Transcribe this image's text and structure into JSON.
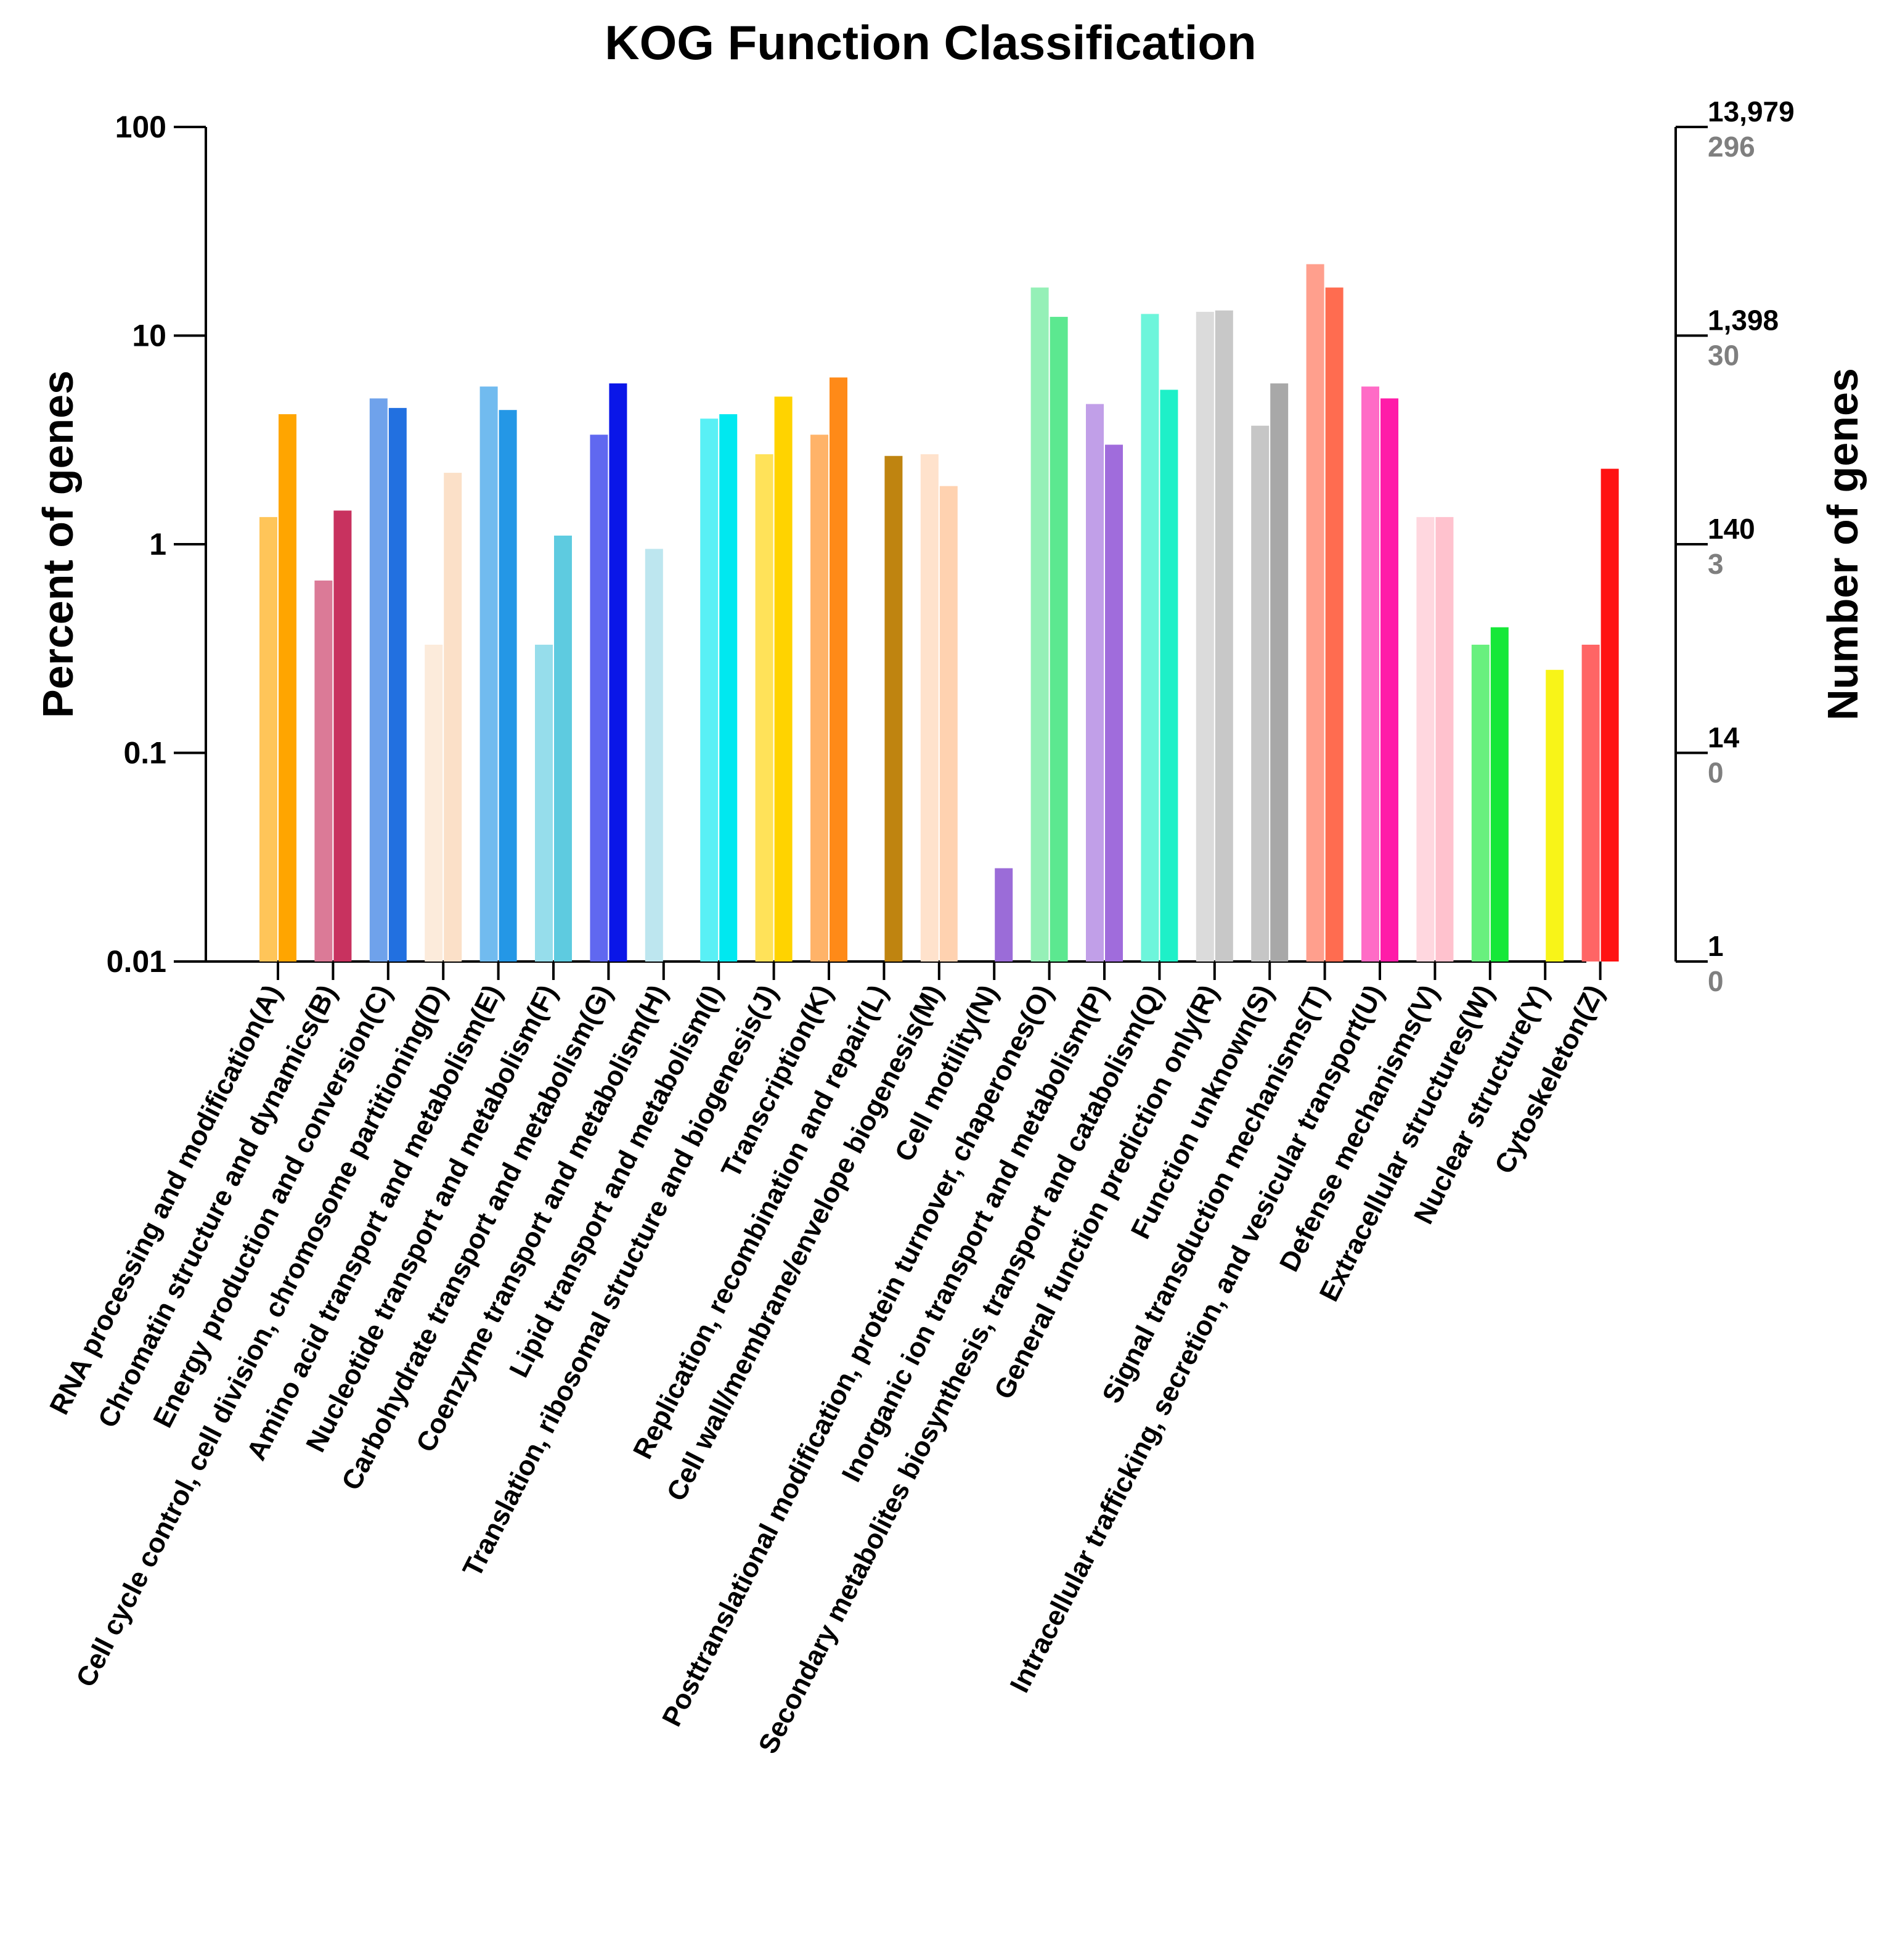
{
  "chart_data": {
    "type": "bar",
    "title": "KOG Function Classification",
    "ylabel": "Percent of genes",
    "ylabel_right": "Number of genes",
    "yscale": "log",
    "ylim": [
      0.01,
      100
    ],
    "y_ticks": [
      "0.01",
      "0.1",
      "1",
      "10",
      "100"
    ],
    "right_ticks_primary": [
      "1",
      "14",
      "140",
      "1,398",
      "13,979"
    ],
    "right_ticks_secondary": [
      "0",
      "0",
      "3",
      "30",
      "296"
    ],
    "categories": [
      "RNA processing and modification(A)",
      "Chromatin structure and dynamics(B)",
      "Energy production and conversion(C)",
      "Cell cycle control, cell division, chromosome partitioning(D)",
      "Amino acid transport and metabolism(E)",
      "Nucleotide transport and metabolism(F)",
      "Carbohydrate transport and metabolism(G)",
      "Coenzyme transport and metabolism(H)",
      "Lipid transport and metabolism(I)",
      "Translation, ribosomal structure and biogenesis(J)",
      "Transcription(K)",
      "Replication, recombination and repair(L)",
      "Cell wall/membrane/envelope biogenesis(M)",
      "Cell motility(N)",
      "Posttranslational modification, protein turnover, chaperones(O)",
      "Inorganic ion transport and metabolism(P)",
      "Secondary metabolites biosynthesis, transport and catabolism(Q)",
      "General function prediction only(R)",
      "Function unknown(S)",
      "Signal transduction mechanisms(T)",
      "Intracellular trafficking, secretion, and vesicular transport(U)",
      "Defense mechanisms(V)",
      "Extracellular structures(W)",
      "Nuclear structure(Y)",
      "Cytoskeleton(Z)"
    ],
    "colors": [
      "#FFA500",
      "#C8325F",
      "#2270E0",
      "#FBE0C8",
      "#2497E6",
      "#5ECBE0",
      "#0A16E8",
      "#9AD8E6",
      "#00E8F0",
      "#FFD300",
      "#FF8A18",
      "#BF8410",
      "#FFD2B0",
      "#9B6CD8",
      "#5CE890",
      "#A06CDC",
      "#1EF0C8",
      "#C8C8C8",
      "#A8A8A8",
      "#FF6C50",
      "#FF1CA8",
      "#FFC2CE",
      "#16E838",
      "#F8F418",
      "#FF1212"
    ],
    "series": [
      {
        "name": "Number of genes (primary, light bars)",
        "values": [
          1.35,
          0.67,
          5.0,
          0.33,
          5.7,
          0.33,
          3.35,
          0.95,
          4.0,
          2.7,
          3.35,
          null,
          2.7,
          null,
          17.0,
          4.7,
          12.7,
          13.0,
          3.7,
          22.0,
          5.7,
          1.35,
          0.33,
          null,
          0.33
        ]
      },
      {
        "name": "Number of genes (secondary, dark bars)",
        "values": [
          4.2,
          1.45,
          4.5,
          2.2,
          4.4,
          1.1,
          5.9,
          null,
          4.2,
          5.1,
          6.3,
          2.65,
          1.9,
          0.028,
          12.3,
          3.0,
          5.5,
          13.2,
          5.9,
          17.0,
          5.0,
          1.35,
          0.4,
          0.25,
          2.3
        ]
      }
    ]
  }
}
